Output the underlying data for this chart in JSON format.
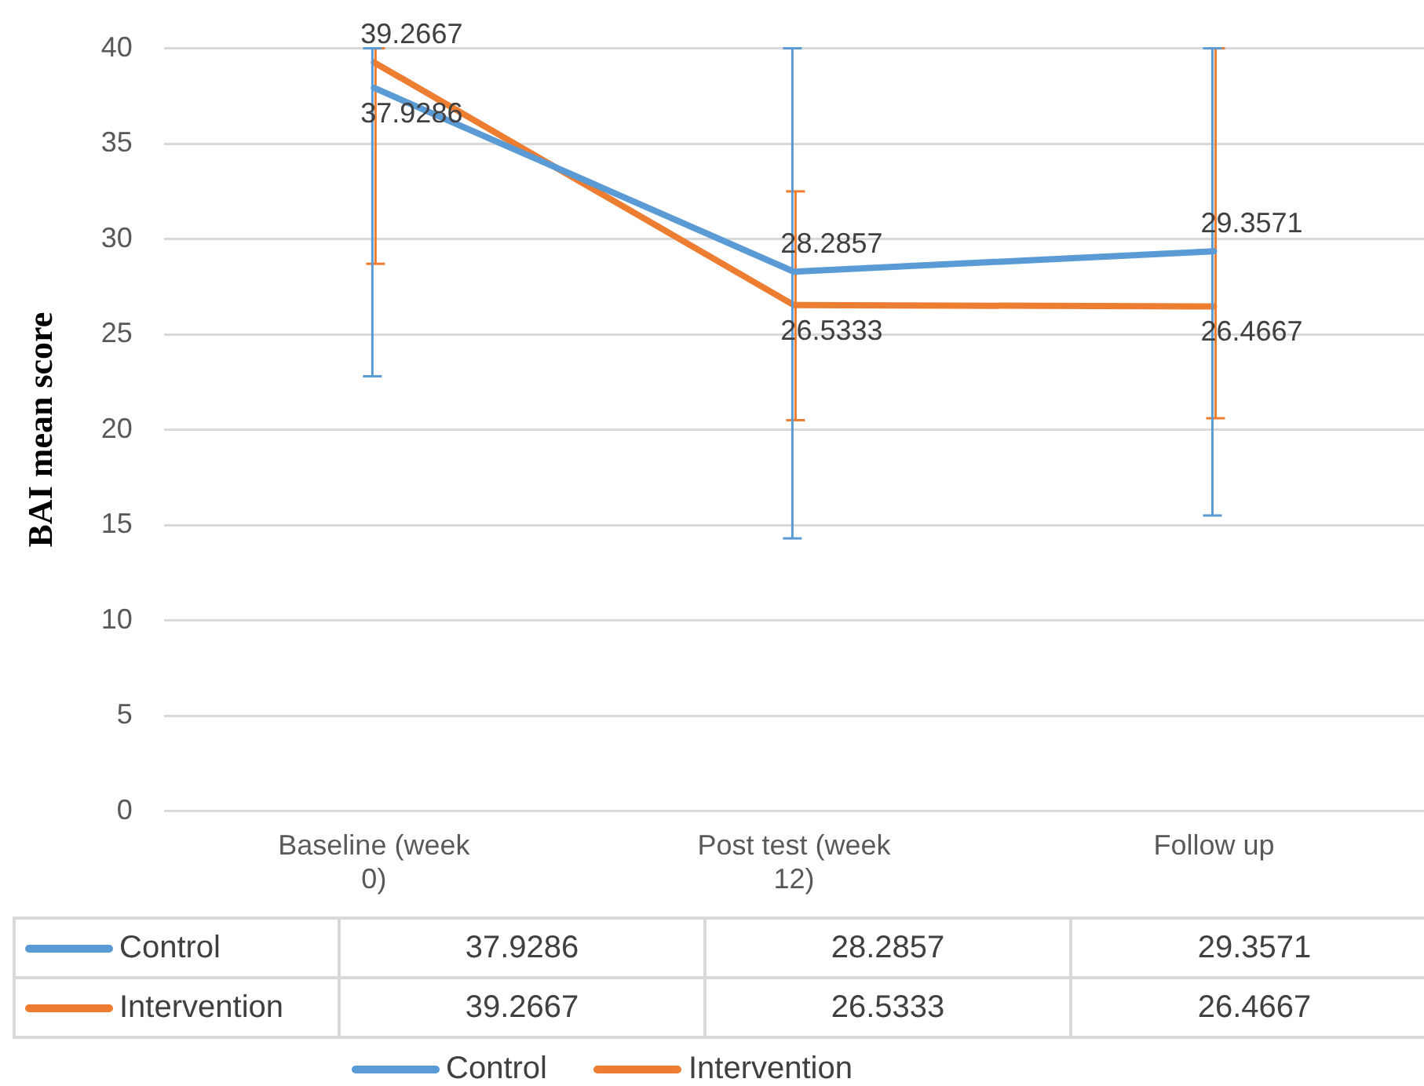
{
  "chart_data": {
    "type": "line",
    "ylabel": "BAI mean score",
    "categories": [
      "Baseline (week 0)",
      "Post test (week 12)",
      "Follow up"
    ],
    "series": [
      {
        "name": "Control",
        "color": "#5b9bd5",
        "values": [
          37.9286,
          28.2857,
          29.3571
        ],
        "errors": [
          [
            22.8,
            40
          ],
          [
            14.3,
            40
          ],
          [
            15.5,
            40
          ]
        ]
      },
      {
        "name": "Intervention",
        "color": "#ed7d31",
        "values": [
          39.2667,
          26.5333,
          26.4667
        ],
        "errors": [
          [
            28.7,
            40
          ],
          [
            20.5,
            32.5
          ],
          [
            20.6,
            40
          ]
        ]
      }
    ],
    "annotations": [
      {
        "text": "37.9286",
        "x": "Baseline (week 0)",
        "y": 37.9286
      },
      {
        "text": "39.2667",
        "x": "Baseline (week 0)",
        "y": 39.2667
      },
      {
        "text": "28.2857",
        "x": "Post test (week 12)",
        "y": 28.2857
      },
      {
        "text": "26.5333",
        "x": "Post test (week 12)",
        "y": 26.5333
      },
      {
        "text": "29.3571",
        "x": "Follow up",
        "y": 29.3571
      },
      {
        "text": "26.4667",
        "x": "Follow up",
        "y": 26.4667
      }
    ],
    "ylim": [
      0,
      40
    ],
    "yticks": [
      0,
      5,
      10,
      15,
      20,
      25,
      30,
      35,
      40
    ],
    "grid": true,
    "legend": "bottom",
    "marker": "none",
    "line_style": "solid",
    "data_labels": true
  }
}
